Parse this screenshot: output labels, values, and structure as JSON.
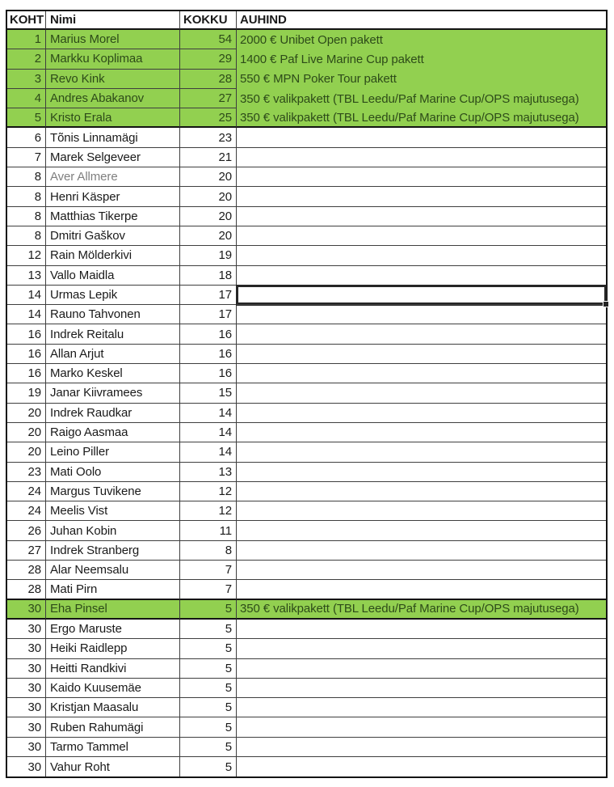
{
  "colors": {
    "highlight_green": "#92d050",
    "grid_line": "#3f3f3f",
    "thick_line": "#141414",
    "text": "#1a1a1a",
    "green_row_text": "#2d4b19",
    "muted_text": "#7f7f7f",
    "selection_border": "#262626"
  },
  "table": {
    "columns": [
      {
        "key": "koht",
        "label": "KOHT"
      },
      {
        "key": "nimi",
        "label": "Nimi"
      },
      {
        "key": "kokku",
        "label": "KOKKU"
      },
      {
        "key": "auhind",
        "label": "AUHIND"
      }
    ],
    "rows": [
      {
        "koht": "1",
        "nimi": "Marius Morel",
        "kokku": "54",
        "auhind": "2000 € Unibet Open pakett",
        "highlight": true
      },
      {
        "koht": "2",
        "nimi": "Markku Koplimaa",
        "kokku": "29",
        "auhind": "1400 € Paf Live Marine Cup pakett",
        "highlight": true
      },
      {
        "koht": "3",
        "nimi": "Revo Kink",
        "kokku": "28",
        "auhind": "550 € MPN Poker Tour pakett",
        "highlight": true
      },
      {
        "koht": "4",
        "nimi": "Andres Abakanov",
        "kokku": "27",
        "auhind": "350 € valikpakett (TBL Leedu/Paf Marine Cup/OPS majutusega)",
        "highlight": true
      },
      {
        "koht": "5",
        "nimi": "Kristo Erala",
        "kokku": "25",
        "auhind": "350 € valikpakett (TBL Leedu/Paf Marine Cup/OPS majutusega)",
        "highlight": true
      },
      {
        "koht": "6",
        "nimi": "Tõnis Linnamägi",
        "kokku": "23",
        "auhind": ""
      },
      {
        "koht": "7",
        "nimi": "Marek Selgeveer",
        "kokku": "21",
        "auhind": ""
      },
      {
        "koht": "8",
        "nimi": "Aver Allmere",
        "kokku": "20",
        "auhind": "",
        "muted": true
      },
      {
        "koht": "8",
        "nimi": "Henri Käsper",
        "kokku": "20",
        "auhind": ""
      },
      {
        "koht": "8",
        "nimi": "Matthias Tikerpe",
        "kokku": "20",
        "auhind": ""
      },
      {
        "koht": "8",
        "nimi": "Dmitri Gaškov",
        "kokku": "20",
        "auhind": ""
      },
      {
        "koht": "12",
        "nimi": "Rain Mölderkivi",
        "kokku": "19",
        "auhind": ""
      },
      {
        "koht": "13",
        "nimi": "Vallo Maidla",
        "kokku": "18",
        "auhind": ""
      },
      {
        "koht": "14",
        "nimi": "Urmas Lepik",
        "kokku": "17",
        "auhind": "",
        "selected": true
      },
      {
        "koht": "14",
        "nimi": "Rauno Tahvonen",
        "kokku": "17",
        "auhind": ""
      },
      {
        "koht": "16",
        "nimi": "Indrek Reitalu",
        "kokku": "16",
        "auhind": ""
      },
      {
        "koht": "16",
        "nimi": "Allan Arjut",
        "kokku": "16",
        "auhind": ""
      },
      {
        "koht": "16",
        "nimi": "Marko Keskel",
        "kokku": "16",
        "auhind": ""
      },
      {
        "koht": "19",
        "nimi": "Janar Kiivramees",
        "kokku": "15",
        "auhind": ""
      },
      {
        "koht": "20",
        "nimi": "Indrek Raudkar",
        "kokku": "14",
        "auhind": ""
      },
      {
        "koht": "20",
        "nimi": "Raigo Aasmaa",
        "kokku": "14",
        "auhind": ""
      },
      {
        "koht": "20",
        "nimi": "Leino Piller",
        "kokku": "14",
        "auhind": ""
      },
      {
        "koht": "23",
        "nimi": "Mati Oolo",
        "kokku": "13",
        "auhind": ""
      },
      {
        "koht": "24",
        "nimi": "Margus Tuvikene",
        "kokku": "12",
        "auhind": ""
      },
      {
        "koht": "24",
        "nimi": "Meelis Vist",
        "kokku": "12",
        "auhind": ""
      },
      {
        "koht": "26",
        "nimi": "Juhan Kobin",
        "kokku": "11",
        "auhind": ""
      },
      {
        "koht": "27",
        "nimi": "Indrek Stranberg",
        "kokku": "8",
        "auhind": ""
      },
      {
        "koht": "28",
        "nimi": "Alar Neemsalu",
        "kokku": "7",
        "auhind": ""
      },
      {
        "koht": "28",
        "nimi": "Mati Pirn",
        "kokku": "7",
        "auhind": ""
      },
      {
        "koht": "30",
        "nimi": "Eha Pinsel",
        "kokku": "5",
        "auhind": "350 € valikpakett (TBL Leedu/Paf Marine Cup/OPS majutusega)",
        "highlight": true
      },
      {
        "koht": "30",
        "nimi": "Ergo Maruste",
        "kokku": "5",
        "auhind": ""
      },
      {
        "koht": "30",
        "nimi": "Heiki Raidlepp",
        "kokku": "5",
        "auhind": ""
      },
      {
        "koht": "30",
        "nimi": "Heitti Randkivi",
        "kokku": "5",
        "auhind": ""
      },
      {
        "koht": "30",
        "nimi": "Kaido Kuusemäe",
        "kokku": "5",
        "auhind": ""
      },
      {
        "koht": "30",
        "nimi": "Kristjan Maasalu",
        "kokku": "5",
        "auhind": ""
      },
      {
        "koht": "30",
        "nimi": "Ruben Rahumägi",
        "kokku": "5",
        "auhind": ""
      },
      {
        "koht": "30",
        "nimi": "Tarmo Tammel",
        "kokku": "5",
        "auhind": ""
      },
      {
        "koht": "30",
        "nimi": "Vahur Roht",
        "kokku": "5",
        "auhind": ""
      }
    ]
  }
}
